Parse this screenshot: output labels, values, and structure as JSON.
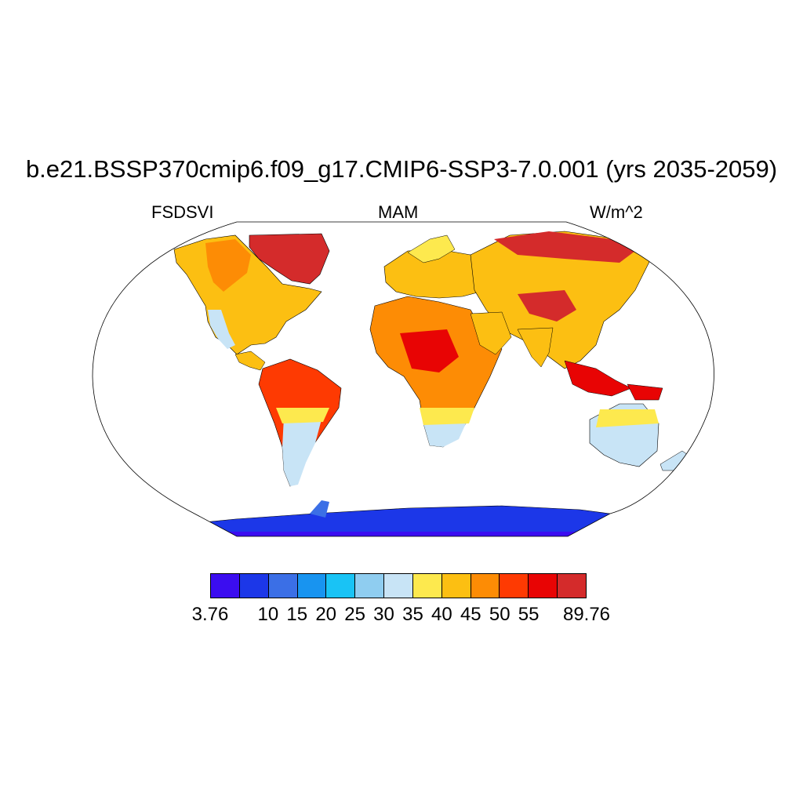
{
  "header": {
    "title": "b.e21.BSSP370cmip6.f09_g17.CMIP6-SSP3-7.0.001 (yrs 2035-2059)",
    "variable": "FSDSVI",
    "season": "MAM",
    "units": "W/m^2"
  },
  "colorbar": {
    "colors": [
      "#3b0df0",
      "#1c37e8",
      "#3b6fe6",
      "#1894f0",
      "#19c3f5",
      "#8fcdf0",
      "#c8e4f6",
      "#fde94e",
      "#fcbf12",
      "#fd8c05",
      "#fe3a02",
      "#e80404",
      "#d42b2b"
    ],
    "labels": [
      {
        "text": "3.76",
        "index": 0
      },
      {
        "text": "10",
        "index": 2
      },
      {
        "text": "15",
        "index": 3
      },
      {
        "text": "20",
        "index": 4
      },
      {
        "text": "25",
        "index": 5
      },
      {
        "text": "30",
        "index": 6
      },
      {
        "text": "35",
        "index": 7
      },
      {
        "text": "40",
        "index": 8
      },
      {
        "text": "45",
        "index": 9
      },
      {
        "text": "50",
        "index": 10
      },
      {
        "text": "55",
        "index": 11
      },
      {
        "text": "89.76",
        "index": 13
      }
    ]
  },
  "map_colors": {
    "ocean": "#ffffff",
    "outline": "#000000"
  }
}
